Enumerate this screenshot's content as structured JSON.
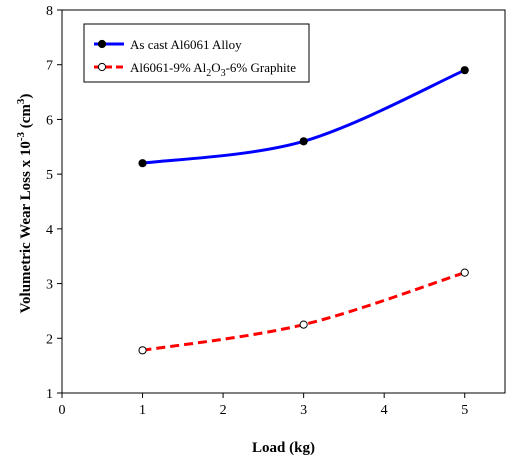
{
  "chart_data": {
    "type": "line",
    "xlabel": "Load (kg)",
    "ylabel": "Volumetric Wear Loss x 10",
    "ylabel_exp": "-3",
    "ylabel_unit_pre": " (cm",
    "ylabel_unit_exp": "3",
    "ylabel_unit_post": ")",
    "xlim": [
      0,
      5.5
    ],
    "ylim": [
      1,
      8
    ],
    "xticks": [
      0,
      1,
      2,
      3,
      4,
      5
    ],
    "yticks": [
      1,
      2,
      3,
      4,
      5,
      6,
      7,
      8
    ],
    "grid": false,
    "legend_position": "top-left",
    "series": [
      {
        "name": "As cast Al6061 Alloy",
        "name_parts": [
          {
            "t": "As cast Al6061 Alloy",
            "sub": false
          }
        ],
        "x": [
          1,
          3,
          5
        ],
        "y": [
          5.2,
          5.6,
          6.9
        ],
        "color": "#0000ff",
        "marker": "filled-circle",
        "dash": "solid"
      },
      {
        "name": "Al6061-9% Al2O3-6% Graphite",
        "name_parts": [
          {
            "t": "Al6061-9% Al",
            "sub": false
          },
          {
            "t": "2",
            "sub": true
          },
          {
            "t": "O",
            "sub": false
          },
          {
            "t": "3",
            "sub": true
          },
          {
            "t": "-6% Graphite",
            "sub": false
          }
        ],
        "x": [
          1,
          3,
          5
        ],
        "y": [
          1.78,
          2.25,
          3.2
        ],
        "color": "#ff0000",
        "marker": "open-circle",
        "dash": "dashed"
      }
    ]
  }
}
